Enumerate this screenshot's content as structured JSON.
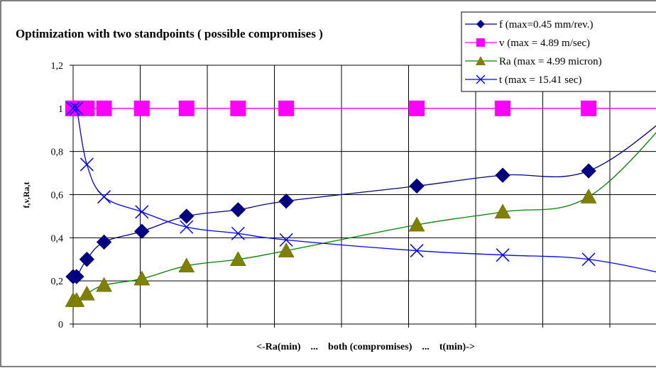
{
  "chart_data": {
    "type": "line",
    "title": "Optimization with two standpoints ( possible compromises )",
    "xlabel": "<-Ra(min)    ...    both (compromises)    ...    t(min)->",
    "ylabel": "f,v,Ra,t",
    "ylim": [
      0,
      1.2
    ],
    "yticks": [
      "0",
      "0,2",
      "0,4",
      "0,6",
      "0,8",
      "1",
      "1,2"
    ],
    "yticks_values": [
      0,
      0.2,
      0.4,
      0.6,
      0.8,
      1.0,
      1.2
    ],
    "xlim": [
      0,
      8.8
    ],
    "grid": true,
    "legend_position": "top-right",
    "series": [
      {
        "name": "f (max=0.45 mm/rev.)",
        "color": "#000080",
        "marker": "diamond",
        "x": [
          0,
          0.05,
          0.2,
          0.45,
          1.0,
          1.65,
          2.4,
          3.1,
          5.0,
          6.25,
          7.5,
          8.8
        ],
        "y": [
          0.22,
          0.22,
          0.3,
          0.38,
          0.43,
          0.5,
          0.53,
          0.57,
          0.64,
          0.69,
          0.71,
          1.0
        ]
      },
      {
        "name": "v (max = 4.89 m/sec)",
        "color": "#FF00FF",
        "marker": "square",
        "x": [
          0,
          0.05,
          0.2,
          0.45,
          1.0,
          1.65,
          2.4,
          3.1,
          5.0,
          6.25,
          7.5,
          8.8
        ],
        "y": [
          1.0,
          1.0,
          1.0,
          1.0,
          1.0,
          1.0,
          1.0,
          1.0,
          1.0,
          1.0,
          1.0,
          1.0
        ]
      },
      {
        "name": "Ra (max = 4.99 micron)",
        "color": "#008000",
        "marker_color": "#808000",
        "marker": "triangle",
        "x": [
          0,
          0.05,
          0.2,
          0.45,
          1.0,
          1.65,
          2.4,
          3.1,
          5.0,
          6.25,
          7.5,
          8.8
        ],
        "y": [
          0.11,
          0.11,
          0.14,
          0.18,
          0.21,
          0.27,
          0.3,
          0.34,
          0.46,
          0.52,
          0.59,
          1.0
        ]
      },
      {
        "name": "t (max = 15.41 sec)",
        "color": "#0000FF",
        "marker": "x",
        "x": [
          0,
          0.05,
          0.2,
          0.45,
          1.0,
          1.65,
          2.4,
          3.1,
          5.0,
          6.25,
          7.5,
          8.8
        ],
        "y": [
          1.0,
          1.0,
          0.74,
          0.59,
          0.52,
          0.45,
          0.42,
          0.39,
          0.34,
          0.32,
          0.3,
          0.22
        ]
      }
    ]
  }
}
